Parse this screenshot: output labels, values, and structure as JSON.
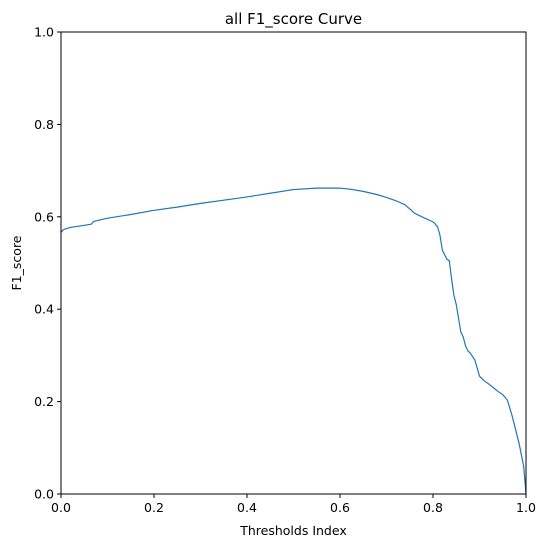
{
  "chart_data": {
    "type": "line",
    "title": "all F1_score Curve",
    "xlabel": "Thresholds Index",
    "ylabel": "F1_score",
    "xlim": [
      0,
      1
    ],
    "ylim": [
      0,
      1
    ],
    "xticks": [
      0,
      0.2,
      0.4,
      0.6,
      0.8,
      1
    ],
    "yticks": [
      0,
      0.2,
      0.4,
      0.6,
      0.8,
      1
    ],
    "xtick_labels": [
      "0.0",
      "0.2",
      "0.4",
      "0.6",
      "0.8",
      "1.0"
    ],
    "ytick_labels": [
      "0.0",
      "0.2",
      "0.4",
      "0.6",
      "0.8",
      "1.0"
    ],
    "grid": false,
    "series": [
      {
        "color": "#1f77b4",
        "x": [
          0,
          0.005,
          0.02,
          0.04,
          0.065,
          0.07,
          0.1,
          0.15,
          0.2,
          0.25,
          0.3,
          0.35,
          0.4,
          0.45,
          0.5,
          0.55,
          0.6,
          0.62,
          0.65,
          0.68,
          0.7,
          0.72,
          0.74,
          0.76,
          0.78,
          0.8,
          0.805,
          0.81,
          0.815,
          0.82,
          0.83,
          0.835,
          0.84,
          0.845,
          0.85,
          0.855,
          0.86,
          0.865,
          0.87,
          0.875,
          0.88,
          0.89,
          0.9,
          0.91,
          0.92,
          0.93,
          0.94,
          0.95,
          0.96,
          0.97,
          0.975,
          0.98,
          0.985,
          0.99,
          0.995,
          1.0
        ],
        "y": [
          0.566,
          0.572,
          0.577,
          0.58,
          0.584,
          0.59,
          0.597,
          0.605,
          0.614,
          0.621,
          0.629,
          0.636,
          0.643,
          0.651,
          0.659,
          0.662,
          0.662,
          0.66,
          0.655,
          0.648,
          0.642,
          0.635,
          0.626,
          0.608,
          0.598,
          0.589,
          0.584,
          0.578,
          0.56,
          0.528,
          0.508,
          0.505,
          0.465,
          0.43,
          0.41,
          0.38,
          0.35,
          0.34,
          0.32,
          0.31,
          0.305,
          0.29,
          0.255,
          0.245,
          0.238,
          0.23,
          0.222,
          0.215,
          0.203,
          0.17,
          0.15,
          0.13,
          0.11,
          0.085,
          0.06,
          0.0
        ]
      }
    ]
  }
}
